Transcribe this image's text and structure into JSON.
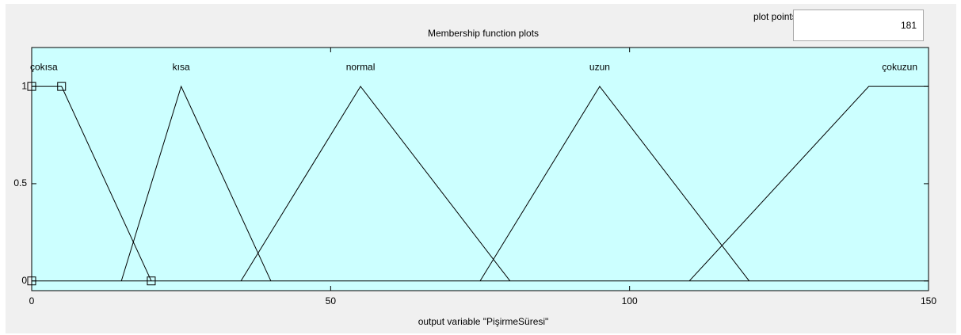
{
  "plot_points_label": "plot points:",
  "plot_points": 181,
  "chart_data": {
    "type": "line",
    "title": "Membership function plots",
    "xlabel": "output variable \"PişirmeSüresi\"",
    "xlim": [
      0,
      150
    ],
    "ylim": [
      -0.05,
      1.2
    ],
    "xticks": [
      0,
      50,
      100,
      150
    ],
    "yticks": [
      0,
      0.5,
      1
    ],
    "selected": 0,
    "background": "#ccffff",
    "series": [
      {
        "name": "çokısa",
        "color": "#000000",
        "x": [
          0,
          0,
          5,
          20
        ],
        "values": [
          0,
          1,
          1,
          0
        ]
      },
      {
        "name": "kısa",
        "color": "#000000",
        "x": [
          15,
          25,
          40
        ],
        "values": [
          0,
          1,
          0
        ]
      },
      {
        "name": "normal",
        "color": "#000000",
        "x": [
          35,
          55,
          80
        ],
        "values": [
          0,
          1,
          0
        ]
      },
      {
        "name": "uzun",
        "color": "#000000",
        "x": [
          75,
          95,
          120
        ],
        "values": [
          0,
          1,
          0
        ]
      },
      {
        "name": "çokuzun",
        "color": "#000000",
        "x": [
          110,
          140,
          150
        ],
        "values": [
          0,
          1,
          1
        ]
      }
    ]
  }
}
